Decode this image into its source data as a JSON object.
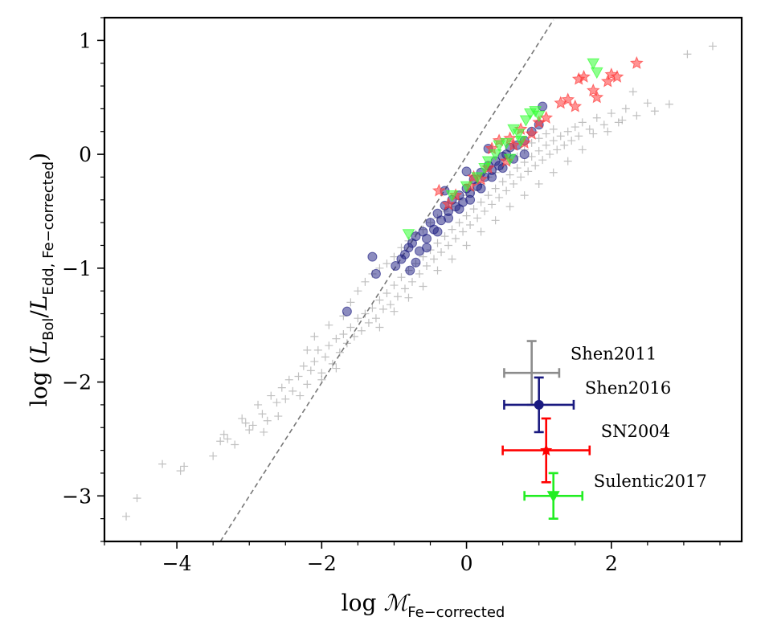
{
  "chart_data": {
    "type": "scatter",
    "title": "",
    "xlabel": {
      "prefix": "log ",
      "symbol": "ℳ",
      "subscript": "Fe−corrected"
    },
    "ylabel": {
      "prefix": "log (",
      "num": "L",
      "num_sub": "Bol",
      "slash": "/",
      "den": "L",
      "den_sub": "Edd, Fe−corrected",
      "suffix": ")"
    },
    "xlim": [
      -5.0,
      3.8
    ],
    "ylim": [
      -3.4,
      1.2
    ],
    "xticks": [
      -4,
      -2,
      0,
      2
    ],
    "xtick_labels": [
      "−4",
      "−2",
      "0",
      "2"
    ],
    "yticks": [
      -3,
      -2,
      -1,
      0,
      1
    ],
    "ytick_labels": [
      "−3",
      "−2",
      "−1",
      "0",
      "1"
    ],
    "reference_line": {
      "style": "dashed",
      "color": "#777777",
      "x": [
        -3.4,
        1.2
      ],
      "y": [
        -3.4,
        1.18
      ]
    },
    "series": [
      {
        "name": "Shen2011",
        "color": "#8c8c8c",
        "marker": "plus",
        "points": [
          [
            -4.7,
            -3.18
          ],
          [
            -4.55,
            -3.02
          ],
          [
            -4.2,
            -2.72
          ],
          [
            -3.95,
            -2.78
          ],
          [
            -3.9,
            -2.74
          ],
          [
            -3.5,
            -2.65
          ],
          [
            -3.4,
            -2.52
          ],
          [
            -3.35,
            -2.46
          ],
          [
            -3.2,
            -2.55
          ],
          [
            -3.1,
            -2.32
          ],
          [
            -3.0,
            -2.42
          ],
          [
            -2.95,
            -2.38
          ],
          [
            -2.88,
            -2.2
          ],
          [
            -2.82,
            -2.28
          ],
          [
            -2.75,
            -2.34
          ],
          [
            -2.7,
            -2.12
          ],
          [
            -2.62,
            -2.18
          ],
          [
            -2.55,
            -2.05
          ],
          [
            -2.5,
            -2.15
          ],
          [
            -2.45,
            -1.98
          ],
          [
            -2.4,
            -2.08
          ],
          [
            -2.32,
            -1.95
          ],
          [
            -2.25,
            -1.86
          ],
          [
            -2.2,
            -2.02
          ],
          [
            -2.15,
            -1.9
          ],
          [
            -2.1,
            -1.82
          ],
          [
            -2.05,
            -1.72
          ],
          [
            -2.0,
            -1.92
          ],
          [
            -1.95,
            -1.78
          ],
          [
            -1.9,
            -1.68
          ],
          [
            -1.85,
            -1.84
          ],
          [
            -1.8,
            -1.62
          ],
          [
            -1.75,
            -1.74
          ],
          [
            -1.7,
            -1.58
          ],
          [
            -1.65,
            -1.66
          ],
          [
            -1.6,
            -1.52
          ],
          [
            -1.55,
            -1.6
          ],
          [
            -1.5,
            -1.44
          ],
          [
            -1.45,
            -1.55
          ],
          [
            -1.4,
            -1.4
          ],
          [
            -1.35,
            -1.48
          ],
          [
            -1.3,
            -1.35
          ],
          [
            -1.25,
            -1.44
          ],
          [
            -1.2,
            -1.28
          ],
          [
            -1.15,
            -1.36
          ],
          [
            -1.1,
            -1.22
          ],
          [
            -1.05,
            -1.32
          ],
          [
            -1.0,
            -1.15
          ],
          [
            -0.95,
            -1.25
          ],
          [
            -0.9,
            -1.08
          ],
          [
            -0.85,
            -1.18
          ],
          [
            -0.8,
            -1.02
          ],
          [
            -0.75,
            -1.12
          ],
          [
            -0.7,
            -0.96
          ],
          [
            -0.65,
            -1.05
          ],
          [
            -0.6,
            -0.9
          ],
          [
            -0.55,
            -0.98
          ],
          [
            -0.5,
            -0.84
          ],
          [
            -0.45,
            -0.92
          ],
          [
            -0.4,
            -0.78
          ],
          [
            -0.35,
            -0.86
          ],
          [
            -0.3,
            -0.72
          ],
          [
            -0.25,
            -0.8
          ],
          [
            -0.2,
            -0.66
          ],
          [
            -0.15,
            -0.74
          ],
          [
            -0.1,
            -0.6
          ],
          [
            -0.05,
            -0.68
          ],
          [
            0.0,
            -0.54
          ],
          [
            0.05,
            -0.62
          ],
          [
            0.1,
            -0.48
          ],
          [
            0.15,
            -0.56
          ],
          [
            0.2,
            -0.42
          ],
          [
            0.25,
            -0.5
          ],
          [
            0.3,
            -0.36
          ],
          [
            0.35,
            -0.44
          ],
          [
            0.4,
            -0.3
          ],
          [
            0.45,
            -0.38
          ],
          [
            0.5,
            -0.24
          ],
          [
            0.55,
            -0.32
          ],
          [
            0.6,
            -0.18
          ],
          [
            0.65,
            -0.26
          ],
          [
            0.7,
            -0.12
          ],
          [
            0.75,
            -0.2
          ],
          [
            0.8,
            -0.07
          ],
          [
            0.85,
            -0.15
          ],
          [
            0.9,
            -0.02
          ],
          [
            0.95,
            -0.1
          ],
          [
            1.0,
            0.03
          ],
          [
            1.05,
            -0.05
          ],
          [
            1.1,
            0.08
          ],
          [
            1.15,
            0.0
          ],
          [
            1.2,
            0.12
          ],
          [
            1.25,
            0.04
          ],
          [
            1.3,
            0.16
          ],
          [
            1.35,
            0.08
          ],
          [
            1.4,
            0.2
          ],
          [
            1.45,
            0.12
          ],
          [
            1.5,
            0.24
          ],
          [
            1.55,
            0.16
          ],
          [
            1.6,
            0.28
          ],
          [
            1.7,
            0.22
          ],
          [
            1.8,
            0.32
          ],
          [
            1.9,
            0.26
          ],
          [
            2.0,
            0.36
          ],
          [
            2.1,
            0.28
          ],
          [
            2.2,
            0.4
          ],
          [
            2.3,
            0.55
          ],
          [
            2.5,
            0.45
          ],
          [
            2.8,
            0.44
          ],
          [
            3.05,
            0.88
          ],
          [
            3.4,
            0.95
          ],
          [
            -1.7,
            -1.42
          ],
          [
            -1.6,
            -1.3
          ],
          [
            -1.5,
            -1.2
          ],
          [
            -1.4,
            -1.12
          ],
          [
            -1.3,
            -1.05
          ],
          [
            -1.2,
            -1.0
          ],
          [
            -1.1,
            -0.96
          ],
          [
            -1.0,
            -0.9
          ],
          [
            -0.9,
            -0.82
          ],
          [
            -0.8,
            -0.76
          ],
          [
            -0.7,
            -0.7
          ],
          [
            -0.6,
            -0.66
          ],
          [
            -0.5,
            -0.6
          ],
          [
            -0.4,
            -0.56
          ],
          [
            -0.3,
            -0.5
          ],
          [
            -0.2,
            -0.46
          ],
          [
            -0.1,
            -0.4
          ],
          [
            0.0,
            -0.36
          ],
          [
            0.1,
            -0.32
          ],
          [
            0.2,
            -0.26
          ],
          [
            0.3,
            -0.2
          ],
          [
            0.4,
            -0.16
          ],
          [
            0.5,
            -0.1
          ],
          [
            0.6,
            -0.06
          ],
          [
            0.7,
            -0.02
          ],
          [
            0.8,
            0.04
          ],
          [
            0.9,
            0.1
          ],
          [
            1.0,
            0.14
          ],
          [
            1.1,
            0.18
          ],
          [
            1.2,
            0.22
          ],
          [
            -1.2,
            -1.52
          ],
          [
            -1.0,
            -1.38
          ],
          [
            -0.8,
            -1.26
          ],
          [
            -0.6,
            -1.16
          ],
          [
            -0.4,
            -1.02
          ],
          [
            -0.2,
            -0.92
          ],
          [
            0.0,
            -0.8
          ],
          [
            0.2,
            -0.68
          ],
          [
            0.4,
            -0.58
          ],
          [
            0.6,
            -0.46
          ],
          [
            0.8,
            -0.36
          ],
          [
            1.0,
            -0.26
          ],
          [
            1.2,
            -0.16
          ],
          [
            1.4,
            -0.06
          ],
          [
            1.6,
            0.04
          ],
          [
            -2.6,
            -2.3
          ],
          [
            -2.3,
            -2.12
          ],
          [
            -2.0,
            -1.98
          ],
          [
            -1.8,
            -1.88
          ],
          [
            -2.8,
            -2.44
          ],
          [
            -3.3,
            -2.5
          ],
          [
            -3.05,
            -2.36
          ],
          [
            -1.9,
            -1.5
          ],
          [
            -2.1,
            -1.6
          ],
          [
            -2.2,
            -1.72
          ],
          [
            1.75,
            0.18
          ],
          [
            1.95,
            0.2
          ],
          [
            2.15,
            0.3
          ],
          [
            2.35,
            0.34
          ],
          [
            2.6,
            0.38
          ]
        ]
      },
      {
        "name": "Shen2016",
        "color": "#1a1a80",
        "marker": "circle",
        "points": [
          [
            -1.3,
            -0.9
          ],
          [
            -1.25,
            -1.05
          ],
          [
            -1.65,
            -1.38
          ],
          [
            -0.98,
            -0.98
          ],
          [
            -0.9,
            -0.92
          ],
          [
            -0.85,
            -0.88
          ],
          [
            -0.8,
            -0.82
          ],
          [
            -0.75,
            -0.78
          ],
          [
            -0.7,
            -0.72
          ],
          [
            -0.65,
            -0.85
          ],
          [
            -0.6,
            -0.68
          ],
          [
            -0.55,
            -0.74
          ],
          [
            -0.5,
            -0.6
          ],
          [
            -0.45,
            -0.66
          ],
          [
            -0.4,
            -0.52
          ],
          [
            -0.35,
            -0.58
          ],
          [
            -0.3,
            -0.45
          ],
          [
            -0.25,
            -0.5
          ],
          [
            -0.2,
            -0.4
          ],
          [
            -0.15,
            -0.46
          ],
          [
            -0.1,
            -0.36
          ],
          [
            -0.05,
            -0.42
          ],
          [
            0.0,
            -0.3
          ],
          [
            0.05,
            -0.34
          ],
          [
            0.1,
            -0.22
          ],
          [
            0.15,
            -0.28
          ],
          [
            0.2,
            -0.16
          ],
          [
            0.25,
            -0.2
          ],
          [
            0.3,
            -0.1
          ],
          [
            0.35,
            -0.14
          ],
          [
            0.4,
            -0.06
          ],
          [
            0.45,
            -0.1
          ],
          [
            0.5,
            -0.02
          ],
          [
            0.55,
            0.0
          ],
          [
            0.6,
            0.06
          ],
          [
            0.7,
            0.08
          ],
          [
            0.8,
            0.12
          ],
          [
            0.9,
            0.2
          ],
          [
            1.0,
            0.26
          ],
          [
            1.05,
            0.42
          ],
          [
            -0.7,
            -0.95
          ],
          [
            -0.55,
            -0.82
          ],
          [
            -0.4,
            -0.68
          ],
          [
            -0.25,
            -0.56
          ],
          [
            -0.1,
            -0.48
          ],
          [
            0.05,
            -0.4
          ],
          [
            0.2,
            -0.3
          ],
          [
            0.35,
            -0.2
          ],
          [
            0.5,
            -0.12
          ],
          [
            0.65,
            -0.04
          ],
          [
            -0.78,
            -1.02
          ],
          [
            -0.3,
            -0.32
          ],
          [
            0.0,
            -0.15
          ],
          [
            0.3,
            0.05
          ],
          [
            0.8,
            0.0
          ]
        ]
      },
      {
        "name": "SN2004",
        "color": "#ff3b3b",
        "marker": "star",
        "points": [
          [
            -0.38,
            -0.32
          ],
          [
            -0.25,
            -0.44
          ],
          [
            -0.15,
            -0.36
          ],
          [
            0.05,
            -0.28
          ],
          [
            0.2,
            -0.22
          ],
          [
            0.3,
            -0.12
          ],
          [
            0.35,
            0.05
          ],
          [
            0.45,
            0.12
          ],
          [
            0.55,
            -0.06
          ],
          [
            0.65,
            0.08
          ],
          [
            0.8,
            0.1
          ],
          [
            0.9,
            0.18
          ],
          [
            1.0,
            0.28
          ],
          [
            1.1,
            0.32
          ],
          [
            1.3,
            0.45
          ],
          [
            1.4,
            0.48
          ],
          [
            1.5,
            0.42
          ],
          [
            1.55,
            0.66
          ],
          [
            1.62,
            0.68
          ],
          [
            1.75,
            0.56
          ],
          [
            1.8,
            0.5
          ],
          [
            1.95,
            0.64
          ],
          [
            2.0,
            0.7
          ],
          [
            2.08,
            0.68
          ],
          [
            2.35,
            0.8
          ],
          [
            0.1,
            -0.2
          ],
          [
            0.6,
            0.14
          ],
          [
            0.75,
            0.22
          ]
        ]
      },
      {
        "name": "Sulentic2017",
        "color": "#33ff33",
        "marker": "triangle-down",
        "points": [
          [
            -0.8,
            -0.7
          ],
          [
            -0.2,
            -0.36
          ],
          [
            0.0,
            -0.28
          ],
          [
            0.15,
            -0.2
          ],
          [
            0.25,
            -0.12
          ],
          [
            0.3,
            -0.06
          ],
          [
            0.4,
            0.0
          ],
          [
            0.45,
            0.08
          ],
          [
            0.55,
            0.1
          ],
          [
            0.65,
            0.22
          ],
          [
            0.72,
            0.18
          ],
          [
            0.82,
            0.3
          ],
          [
            0.88,
            0.36
          ],
          [
            0.95,
            0.38
          ],
          [
            1.0,
            0.34
          ],
          [
            1.75,
            0.8
          ],
          [
            1.8,
            0.72
          ],
          [
            0.6,
            -0.04
          ],
          [
            0.75,
            0.12
          ]
        ]
      }
    ],
    "error_bars": [
      {
        "name": "Shen2011",
        "label": "Shen2011",
        "color": "#8c8c8c",
        "marker": "none",
        "x": 0.9,
        "y": -1.92,
        "xerr": 0.38,
        "yerr": 0.28
      },
      {
        "name": "Shen2016",
        "label": "Shen2016",
        "color": "#1a1a80",
        "marker": "circle",
        "x": 1.0,
        "y": -2.2,
        "xerr": 0.48,
        "yerr": 0.24
      },
      {
        "name": "SN2004",
        "label": "SN2004",
        "color": "#ff0000",
        "marker": "star",
        "x": 1.1,
        "y": -2.6,
        "xerr": 0.6,
        "yerr": 0.28
      },
      {
        "name": "Sulentic2017",
        "label": "Sulentic2017",
        "color": "#22ee22",
        "marker": "triangle-down",
        "x": 1.2,
        "y": -3.0,
        "xerr": 0.4,
        "yerr": 0.2
      }
    ]
  }
}
